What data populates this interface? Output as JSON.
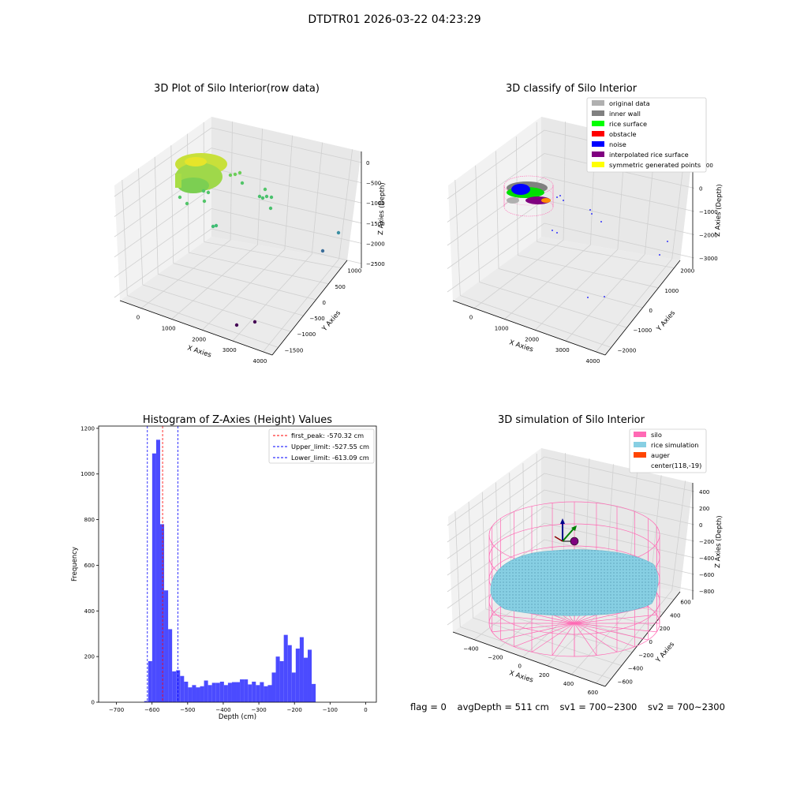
{
  "header": {
    "title": "DTDTR01 2026-03-22 04:23:29"
  },
  "status": {
    "flag": "flag = 0",
    "avg_depth": "avgDepth = 511 cm",
    "sv1": "sv1 = 700~2300",
    "sv2": "sv2 = 700~2300"
  },
  "colors": {
    "histogram_bar": "#4b4bff",
    "peak_line": "#ff0000",
    "limit_line": "#0000ff",
    "silo": "#ff69b4",
    "rice_simulation": "#87cfe3",
    "auger": "#ff4500",
    "original_data": "#b0b0b0",
    "inner_wall": "#808080",
    "rice_surface": "#00ff00",
    "obstacle": "#ff0000",
    "noise": "#0000ff",
    "interpolated_rice_surface": "#800080",
    "symmetric_generated_points": "#ffff00"
  },
  "chart_data": [
    {
      "type": "scatter",
      "projection": "3d",
      "title": "3D Plot of Silo Interior(row data)",
      "xlabel": "X Axies",
      "ylabel": "Y Axies",
      "zlabel": "Z Axies (Depth)",
      "x_ticks": [
        "0",
        "1000",
        "2000",
        "3000",
        "4000"
      ],
      "y_ticks": [
        "1000",
        "500",
        "0",
        "−500",
        "−1000",
        "−1500"
      ],
      "z_ticks": [
        "0",
        "−500",
        "−1000",
        "−1500",
        "−2000",
        "−2500"
      ],
      "grid": true,
      "colormap": "viridis"
    },
    {
      "type": "scatter",
      "projection": "3d",
      "title": "3D classify of Silo Interior",
      "xlabel": "X Axies",
      "ylabel": "Y Axies",
      "zlabel": "Z Axies (Depth)",
      "x_ticks": [
        "0",
        "1000",
        "2000",
        "3000",
        "4000"
      ],
      "y_ticks": [
        "2000",
        "1000",
        "0",
        "−1000",
        "−2000"
      ],
      "z_ticks": [
        "1000",
        "0",
        "−1000",
        "−2000",
        "−3000"
      ],
      "legend": [
        "original data",
        "inner wall",
        "rice surface",
        "obstacle",
        "noise",
        "interpolated rice surface",
        "symmetric generated points"
      ],
      "legend_position": "top-right",
      "grid": true
    },
    {
      "type": "bar",
      "title": "Histogram of Z-Axies (Height) Values",
      "xlabel": "Depth (cm)",
      "ylabel": "Frequency",
      "xlim": [
        -750,
        30
      ],
      "ylim": [
        0,
        1210
      ],
      "x_ticks": [
        -700,
        -600,
        -500,
        -400,
        -300,
        -200,
        -100,
        0
      ],
      "y_ticks": [
        0,
        200,
        400,
        600,
        800,
        1000,
        1200
      ],
      "x_tick_labels": [
        "−700",
        "−600",
        "−500",
        "−400",
        "−300",
        "−200",
        "−100",
        "0"
      ],
      "bin_start": -622,
      "bin_width": 11.2,
      "values": [
        5,
        180,
        1090,
        1150,
        780,
        490,
        320,
        135,
        140,
        115,
        90,
        65,
        75,
        65,
        70,
        95,
        75,
        85,
        85,
        90,
        75,
        85,
        88,
        88,
        100,
        100,
        78,
        90,
        75,
        88,
        70,
        75,
        130,
        200,
        180,
        295,
        250,
        130,
        235,
        285,
        195,
        230,
        80
      ],
      "lines": [
        {
          "label": "first_peak: -570.32 cm",
          "value": -570.32,
          "style": "red-dashed"
        },
        {
          "label": "Upper_limit: -527.55 cm",
          "value": -527.55,
          "style": "blue-dashed"
        },
        {
          "label": "Lower_limit: -613.09 cm",
          "value": -613.09,
          "style": "blue-dashed"
        }
      ],
      "legend_position": "top-right"
    },
    {
      "type": "scatter",
      "projection": "3d",
      "title": "3D simulation of Silo Interior",
      "xlabel": "X Axies",
      "ylabel": "Y Axies",
      "zlabel": "Z Axies (Depth)",
      "x_ticks": [
        "−400",
        "−200",
        "0",
        "200",
        "400",
        "600"
      ],
      "y_ticks": [
        "600",
        "400",
        "200",
        "0",
        "−200",
        "−400",
        "−600"
      ],
      "z_ticks": [
        "400",
        "200",
        "0",
        "−200",
        "−400",
        "−600",
        "−800"
      ],
      "legend": [
        "silo",
        "rice simulation",
        "auger",
        "center(118,-19)"
      ],
      "legend_position": "top-right",
      "grid": true
    }
  ]
}
